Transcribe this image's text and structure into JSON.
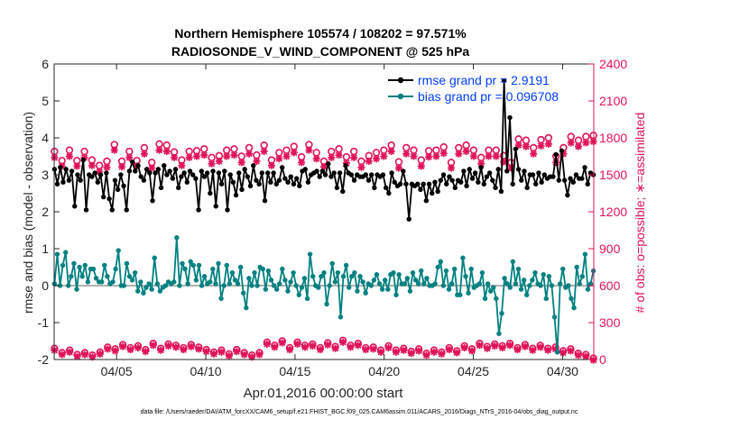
{
  "chart_data": {
    "type": "line",
    "title": "Northern Hemisphere 105574 / 108202 = 97.571%",
    "subtitle": "RADIOSONDE_V_WIND_COMPONENT @ 525 hPa",
    "xlabel": "Apr.01,2016 00:00:00 start",
    "ylabel": "rmse and bias (model - observation)",
    "ylabel_right": "# of obs: o=possible; ∗=assimilated",
    "footer": "data file: /Users/raeder/DAI/ATM_forcXX/CAM6_setup/f.e21.FHIST_BGC.f09_025.CAM6assim.011/ACARS_2016/Diags_NTrS_2016-04/obs_diag_output.nc",
    "x_unit": "days since Apr.01,2016",
    "xlim": [
      0.5,
      30.75
    ],
    "ylim": [
      -2,
      6
    ],
    "ylim_right": [
      0,
      2400
    ],
    "x_ticks": [
      4,
      9,
      14,
      19,
      24,
      29
    ],
    "x_tick_labels": [
      "04/05",
      "04/10",
      "04/15",
      "04/20",
      "04/25",
      "04/30"
    ],
    "y_ticks": [
      -2,
      -1,
      0,
      1,
      2,
      3,
      4,
      5,
      6
    ],
    "y_tick_labels": [
      "-2",
      "-1",
      "0",
      "1",
      "2",
      "3",
      "4",
      "5",
      "6"
    ],
    "y_ticks_right": [
      0,
      300,
      600,
      900,
      1200,
      1500,
      1800,
      2100,
      2400
    ],
    "y_tick_labels_right": [
      "0",
      "300",
      "600",
      "900",
      "1200",
      "1500",
      "1800",
      "2100",
      "2400"
    ],
    "zero_line": 0,
    "legend_position": "top-right",
    "series": [
      {
        "name": "rmse grand pr = 2.9191",
        "color": "#000000",
        "axis": "left",
        "marker": "circle",
        "values": [
          3.15,
          2.75,
          3.2,
          2.8,
          3.15,
          2.85,
          3.1,
          2.15,
          3.0,
          2.85,
          3.4,
          2.05,
          3.0,
          2.95,
          3.05,
          2.8,
          3.0,
          2.4,
          3.05,
          2.35,
          2.05,
          2.85,
          2.6,
          3.0,
          2.7,
          2.05,
          3.1,
          3.35,
          3.1,
          3.25,
          2.95,
          2.85,
          3.15,
          3.05,
          2.3,
          3.05,
          3.15,
          2.65,
          3.25,
          3.0,
          3.1,
          2.9,
          3.15,
          2.65,
          2.95,
          3.05,
          2.8,
          3.1,
          3.0,
          2.9,
          2.05,
          3.1,
          2.95,
          3.05,
          2.5,
          3.1,
          2.15,
          3.05,
          2.75,
          3.1,
          2.05,
          3.0,
          2.8,
          2.45,
          3.05,
          2.6,
          3.15,
          2.95,
          2.7,
          3.25,
          2.85,
          2.75,
          3.05,
          2.3,
          3.05,
          2.8,
          3.05,
          2.75,
          2.85,
          3.2,
          2.9,
          2.8,
          2.95,
          2.75,
          2.9,
          2.7,
          3.1,
          3.15,
          2.8,
          3.0,
          3.05,
          3.1,
          2.95,
          3.1,
          3.0,
          3.3,
          2.95,
          3.05,
          2.65,
          3.05,
          2.55,
          3.25,
          3.05,
          3.0,
          2.85,
          3.0,
          2.95,
          2.95,
          3.0,
          2.85,
          3.0,
          2.65,
          3.0,
          2.95,
          3.0,
          2.65,
          2.5,
          3.05,
          2.8,
          2.7,
          2.75,
          3.1,
          2.75,
          1.8,
          2.75,
          2.7,
          2.75,
          2.6,
          2.75,
          2.3,
          2.75,
          2.5,
          2.8,
          2.55,
          2.85,
          3.0,
          2.75,
          2.95,
          2.85,
          2.65,
          2.85,
          2.8,
          3.1,
          2.7,
          3.15,
          2.9,
          3.05,
          2.8,
          3.2,
          2.75,
          2.95,
          3.05,
          2.85,
          2.65,
          3.15,
          2.55,
          5.55,
          3.1,
          4.55,
          2.75,
          3.7,
          3.15,
          2.85,
          3.1,
          2.65,
          3.0,
          3.0,
          2.75,
          3.05,
          2.8,
          3.0,
          2.9,
          2.95,
          2.95,
          3.55,
          2.85,
          3.65,
          2.85,
          2.45,
          2.9,
          2.8,
          3.0,
          2.9,
          2.9,
          3.2,
          2.75,
          3.05,
          3.0
        ]
      },
      {
        "name": "bias grand pr = 0.096708",
        "color": "#008080",
        "axis": "left",
        "marker": "circle",
        "values": [
          0.05,
          0.85,
          0.0,
          0.55,
          0.9,
          0.0,
          0.25,
          0.6,
          -0.1,
          0.5,
          0.25,
          0.55,
          0.1,
          0.45,
          0.45,
          0.2,
          0.1,
          0.1,
          0.55,
          0.25,
          0.05,
          0.1,
          0.45,
          0.95,
          0.0,
          0.0,
          0.6,
          0.25,
          0.15,
          0.35,
          -0.15,
          0.1,
          -0.2,
          -0.05,
          0.05,
          -0.1,
          0.75,
          0.05,
          -0.15,
          -0.05,
          0.0,
          0.1,
          0.05,
          0.1,
          1.3,
          0.0,
          0.6,
          0.45,
          0.05,
          0.65,
          0.55,
          0.15,
          0.55,
          0.0,
          0.25,
          0.05,
          0.1,
          0.45,
          0.05,
          0.6,
          -0.35,
          0.0,
          0.55,
          0.05,
          0.35,
          0.15,
          0.05,
          0.5,
          -0.2,
          -0.6,
          0.2,
          0.0,
          0.35,
          0.0,
          0.5,
          0.45,
          -0.1,
          0.4,
          0.15,
          0.0,
          -0.1,
          0.05,
          0.45,
          0.15,
          -0.15,
          0.1,
          0.35,
          0.0,
          -0.25,
          -0.05,
          0.2,
          -0.35,
          0.85,
          0.25,
          0.0,
          -0.05,
          0.25,
          0.35,
          -0.5,
          0.0,
          0.6,
          0.1,
          0.35,
          -0.85,
          0.25,
          0.55,
          -0.05,
          0.25,
          0.35,
          -0.15,
          0.25,
          0.1,
          -0.2,
          0.05,
          0.0,
          0.15,
          0.3,
          0.05,
          -0.1,
          0.15,
          -0.1,
          0.3,
          0.35,
          -0.25,
          0.3,
          0.05,
          0.05,
          0.2,
          -0.15,
          0.35,
          0.15,
          0.05,
          0.4,
          0.05,
          0.2,
          0.0,
          0.0,
          0.05,
          0.5,
          0.65,
          0.0,
          0.4,
          -0.1,
          0.05,
          0.45,
          -0.25,
          -0.25,
          0.75,
          0.25,
          -0.2,
          0.45,
          -0.05,
          0.0,
          0.05,
          0.35,
          -0.35,
          0.05,
          -0.15,
          -0.05,
          -0.35,
          -1.3,
          -0.75,
          0.2,
          0.05,
          -0.05,
          0.65,
          0.05,
          0.45,
          -0.1,
          0.15,
          -0.25,
          0.0,
          0.15,
          0.35,
          0.05,
          0.0,
          0.3,
          -0.35,
          0.25,
          0.0,
          -0.85,
          -1.8,
          0.05,
          0.45,
          -0.05,
          0.0,
          -0.35,
          -0.6,
          0.5,
          0.05,
          0.25,
          0.85,
          -0.1,
          0.05,
          0.4
        ]
      },
      {
        "name": "obs possible",
        "color": "#e0135a",
        "axis": "right",
        "marker": "o",
        "values": [
          1690,
          1615,
          1700,
          1615,
          1690,
          1620,
          1575,
          1610,
          1745,
          1610,
          1690,
          1615,
          1720,
          1600,
          1750,
          1740,
          1685,
          1620,
          1690,
          1695,
          1710,
          1640,
          1655,
          1700,
          1710,
          1650,
          1720,
          1660,
          1740,
          1620,
          1680,
          1700,
          1730,
          1645,
          1745,
          1680,
          1610,
          1690,
          1710,
          1645,
          1690,
          1610,
          1655,
          1680,
          1700,
          1740,
          1605,
          1720,
          1700,
          1620,
          1695,
          1700,
          1725,
          1600,
          1720,
          1740,
          1700,
          1640,
          1700,
          1700,
          1655,
          1600,
          1790,
          1780,
          1720,
          1785,
          1800,
          1650,
          1720,
          1810,
          1780,
          1810,
          1820
        ]
      },
      {
        "name": "obs assimilated",
        "color": "#e0135a",
        "axis": "right",
        "marker": "asterisk",
        "values": [
          1640,
          1570,
          1650,
          1570,
          1640,
          1575,
          1525,
          1560,
          1700,
          1565,
          1640,
          1570,
          1670,
          1555,
          1700,
          1690,
          1640,
          1575,
          1640,
          1650,
          1660,
          1590,
          1610,
          1650,
          1660,
          1600,
          1670,
          1610,
          1690,
          1575,
          1630,
          1650,
          1680,
          1600,
          1700,
          1630,
          1565,
          1640,
          1660,
          1595,
          1640,
          1560,
          1610,
          1630,
          1650,
          1690,
          1555,
          1670,
          1650,
          1570,
          1645,
          1650,
          1675,
          1555,
          1670,
          1690,
          1650,
          1590,
          1650,
          1650,
          1605,
          1555,
          1740,
          1730,
          1670,
          1735,
          1750,
          1600,
          1670,
          1760,
          1730,
          1760,
          1770
        ]
      },
      {
        "name": "obs bottom possible",
        "color": "#e0135a",
        "axis": "right",
        "marker": "o",
        "values": [
          90,
          55,
          75,
          40,
          55,
          35,
          60,
          100,
          85,
          120,
          95,
          110,
          80,
          130,
          90,
          125,
          115,
          95,
          120,
          100,
          80,
          60,
          75,
          45,
          80,
          55,
          35,
          55,
          140,
          115,
          150,
          95,
          140,
          115,
          125,
          95,
          135,
          105,
          155,
          115,
          130,
          95,
          100,
          75,
          110,
          75,
          90,
          65,
          85,
          50,
          75,
          60,
          95,
          70,
          110,
          85,
          130,
          105,
          125,
          110,
          130,
          95,
          120,
          90,
          115,
          90,
          100,
          70,
          85,
          50,
          40,
          10
        ]
      },
      {
        "name": "obs bottom assimilated",
        "color": "#e0135a",
        "axis": "right",
        "marker": "asterisk",
        "values": [
          75,
          40,
          60,
          25,
          40,
          20,
          45,
          85,
          70,
          105,
          80,
          95,
          65,
          115,
          75,
          110,
          100,
          80,
          105,
          85,
          65,
          45,
          60,
          30,
          65,
          40,
          20,
          40,
          125,
          100,
          135,
          80,
          125,
          100,
          110,
          80,
          120,
          90,
          140,
          100,
          115,
          80,
          85,
          60,
          95,
          60,
          75,
          50,
          70,
          35,
          60,
          45,
          80,
          55,
          95,
          70,
          115,
          90,
          110,
          95,
          115,
          80,
          105,
          75,
          100,
          75,
          85,
          55,
          70,
          35,
          25,
          -5
        ]
      }
    ]
  }
}
